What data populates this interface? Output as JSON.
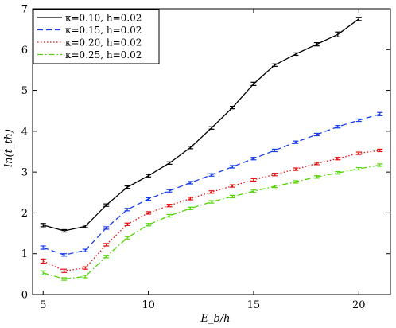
{
  "chart_data": {
    "type": "line",
    "xlabel": "E_b/h",
    "ylabel": "ln(t_th)",
    "xlim": [
      4.5,
      21.5
    ],
    "ylim": [
      0,
      7
    ],
    "xticks": [
      5,
      10,
      15,
      20
    ],
    "yticks": [
      0,
      1,
      2,
      3,
      4,
      5,
      6,
      7
    ],
    "grid": false,
    "legend_position": "top-left",
    "series": [
      {
        "name": "κ=0.10, h=0.02",
        "color": "#000000",
        "dash": "solid",
        "x": [
          5,
          6,
          7,
          8,
          9,
          10,
          11,
          12,
          13,
          14,
          15,
          16,
          17,
          18,
          19,
          20
        ],
        "y": [
          1.7,
          1.56,
          1.67,
          2.19,
          2.63,
          2.91,
          3.22,
          3.6,
          4.08,
          4.58,
          5.16,
          5.62,
          5.89,
          6.13,
          6.37,
          6.75
        ],
        "err": [
          0.04,
          0.03,
          0.03,
          0.03,
          0.03,
          0.03,
          0.03,
          0.03,
          0.03,
          0.03,
          0.04,
          0.03,
          0.03,
          0.04,
          0.06,
          0.04
        ]
      },
      {
        "name": "κ=0.15, h=0.02",
        "color": "#1a3de8",
        "dash": "dashed",
        "x": [
          5,
          6,
          7,
          8,
          9,
          10,
          11,
          12,
          13,
          14,
          15,
          16,
          17,
          18,
          19,
          20,
          21
        ],
        "y": [
          1.15,
          0.97,
          1.08,
          1.63,
          2.08,
          2.34,
          2.54,
          2.74,
          2.93,
          3.13,
          3.33,
          3.53,
          3.73,
          3.92,
          4.11,
          4.27,
          4.42
        ],
        "err": [
          0.04,
          0.03,
          0.03,
          0.03,
          0.03,
          0.03,
          0.03,
          0.03,
          0.03,
          0.03,
          0.03,
          0.03,
          0.03,
          0.03,
          0.03,
          0.03,
          0.04
        ]
      },
      {
        "name": "κ=0.20, h=0.02",
        "color": "#e01010",
        "dash": "dotted",
        "x": [
          5,
          6,
          7,
          8,
          9,
          10,
          11,
          12,
          13,
          14,
          15,
          16,
          17,
          18,
          19,
          20,
          21
        ],
        "y": [
          0.82,
          0.58,
          0.65,
          1.22,
          1.72,
          2.0,
          2.18,
          2.35,
          2.51,
          2.66,
          2.81,
          2.94,
          3.07,
          3.21,
          3.33,
          3.46,
          3.53
        ],
        "err": [
          0.05,
          0.04,
          0.03,
          0.03,
          0.03,
          0.03,
          0.03,
          0.03,
          0.03,
          0.03,
          0.03,
          0.03,
          0.03,
          0.03,
          0.03,
          0.03,
          0.03
        ]
      },
      {
        "name": "κ=0.25, h=0.02",
        "color": "#55d40a",
        "dash": "dashdot",
        "x": [
          5,
          6,
          7,
          8,
          9,
          10,
          11,
          12,
          13,
          14,
          15,
          16,
          17,
          18,
          19,
          20,
          21
        ],
        "y": [
          0.53,
          0.38,
          0.44,
          0.93,
          1.39,
          1.71,
          1.93,
          2.11,
          2.27,
          2.4,
          2.53,
          2.65,
          2.76,
          2.88,
          2.98,
          3.08,
          3.17
        ],
        "err": [
          0.05,
          0.03,
          0.03,
          0.03,
          0.03,
          0.03,
          0.03,
          0.03,
          0.03,
          0.03,
          0.03,
          0.03,
          0.03,
          0.03,
          0.03,
          0.03,
          0.03
        ]
      }
    ]
  }
}
